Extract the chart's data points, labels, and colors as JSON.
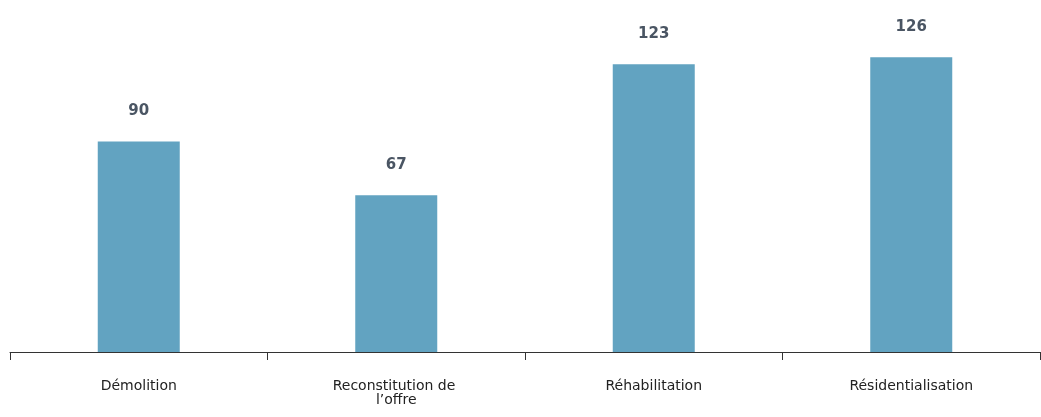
{
  "chart_data": {
    "type": "bar",
    "categories": [
      "Démolition",
      "Reconstitution de l’offre",
      "Réhabilitation",
      "Résidentialisation"
    ],
    "values": [
      90,
      67,
      123,
      126
    ],
    "color": "#62a3c1",
    "data_labels": true
  }
}
